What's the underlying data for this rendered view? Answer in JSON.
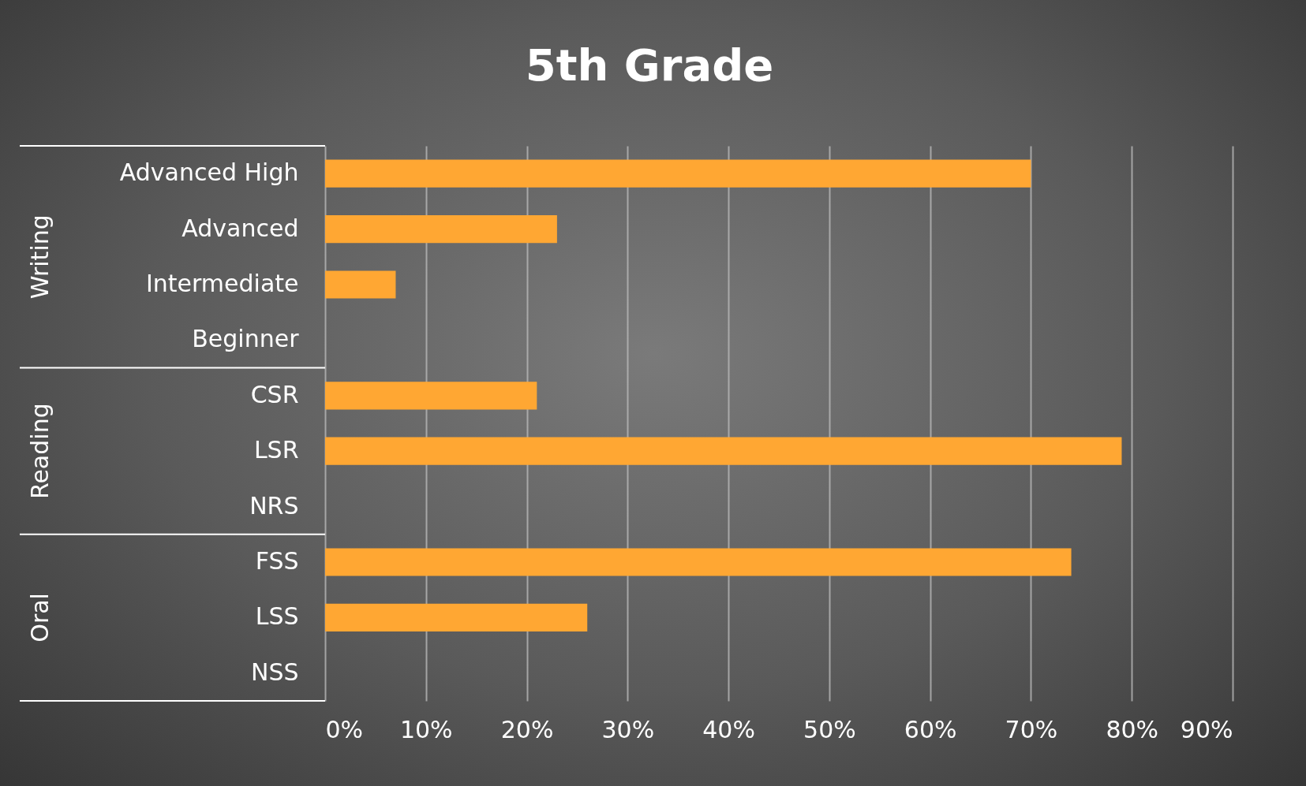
{
  "chart_data": {
    "type": "bar",
    "orientation": "horizontal",
    "title": "5th Grade",
    "categories": [
      "Advanced High",
      "Advanced",
      "Intermediate",
      "Beginner",
      "CSR",
      "LSR",
      "NRS",
      "FSS",
      "LSS",
      "NSS"
    ],
    "values": [
      70,
      23,
      7,
      0,
      21,
      79,
      0,
      74,
      26,
      0
    ],
    "color": "#ffa733",
    "xlim": [
      0,
      90
    ],
    "xticks": [
      {
        "value": 0,
        "label": "0%"
      },
      {
        "value": 10,
        "label": "10%"
      },
      {
        "value": 20,
        "label": "20%"
      },
      {
        "value": 30,
        "label": "30%"
      },
      {
        "value": 40,
        "label": "40%"
      },
      {
        "value": 50,
        "label": "50%"
      },
      {
        "value": 60,
        "label": "60%"
      },
      {
        "value": 70,
        "label": "70%"
      },
      {
        "value": 80,
        "label": "80%"
      },
      {
        "value": 90,
        "label": "90%"
      }
    ],
    "grid": "x",
    "annotations": [
      "Writing",
      "Reading",
      "Oral"
    ]
  }
}
